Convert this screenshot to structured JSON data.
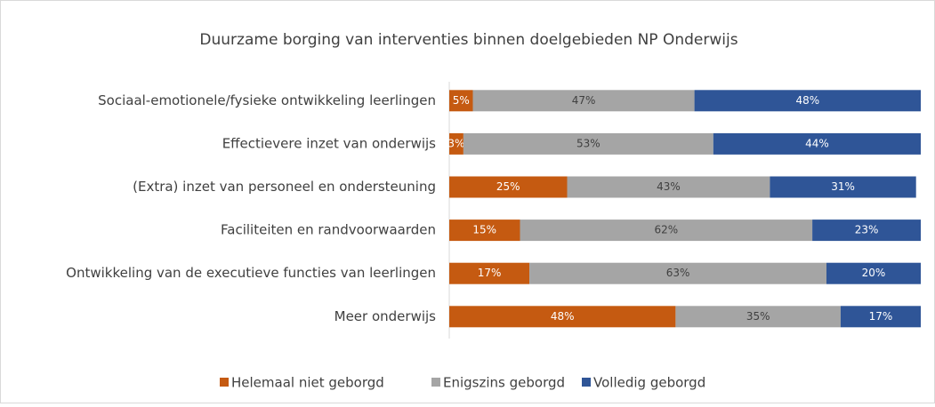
{
  "chart_data": {
    "type": "stacked_barh",
    "title": "Duurzame borging van interventies binnen doelgebieden NP Onderwijs",
    "categories": [
      "Sociaal-emotionele/fysieke ontwikkeling leerlingen",
      "Effectievere inzet van onderwijs",
      "(Extra) inzet van personeel en ondersteuning",
      "Faciliteiten en randvoorwaarden",
      "Ontwikkeling van de executieve functies van leerlingen",
      "Meer onderwijs"
    ],
    "series": [
      {
        "name": "Helemaal niet geborgd",
        "color": "#c55a11",
        "values": [
          5,
          3,
          25,
          15,
          17,
          48
        ],
        "value_labels": [
          "5%",
          "3%",
          "25%",
          "15%",
          "17%",
          "48%"
        ]
      },
      {
        "name": "Enigszins geborgd",
        "color": "#a5a5a5",
        "values": [
          47,
          53,
          43,
          62,
          63,
          35
        ],
        "value_labels": [
          "47%",
          "53%",
          "43%",
          "62%",
          "63%",
          "35%"
        ]
      },
      {
        "name": "Volledig geborgd",
        "color": "#2f5597",
        "values": [
          48,
          44,
          31,
          23,
          20,
          17
        ],
        "value_labels": [
          "48%",
          "44%",
          "31%",
          "23%",
          "20%",
          "17%"
        ]
      }
    ],
    "xlim": [
      0,
      100
    ],
    "legend": "bottom"
  }
}
